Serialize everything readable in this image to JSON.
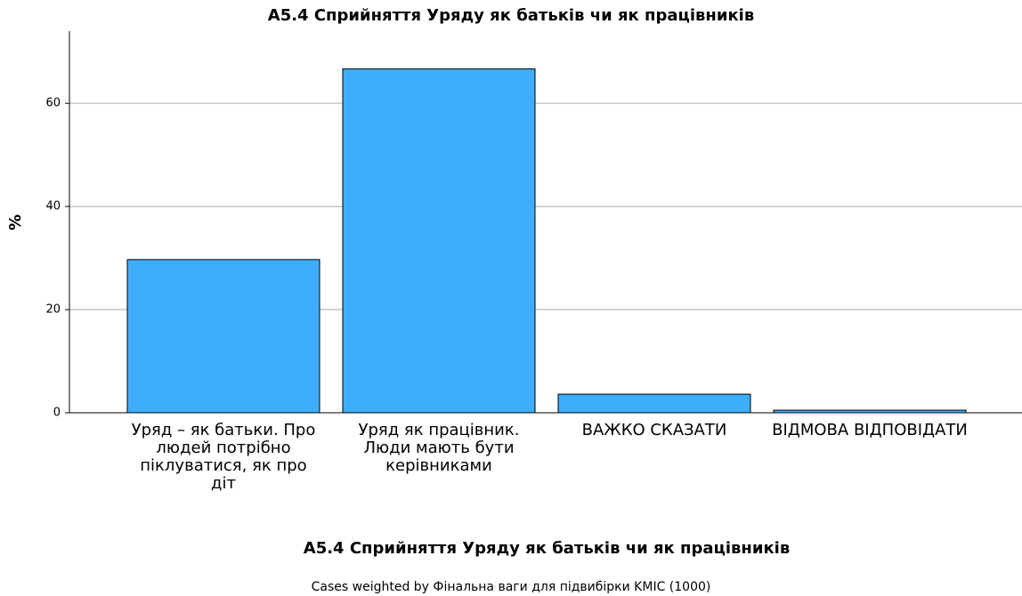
{
  "chart_data": {
    "type": "bar",
    "title": "А5.4 Сприйняття Уряду як батьків чи як працівників",
    "x_label": "А5.4 Сприйняття Уряду як батьків чи як працівників",
    "y_label": "%",
    "footnote": "Cases weighted by Фінальна ваги для підвибірки KMIC (1000)",
    "categories": [
      "Уряд – як батьки. Про людей потрібно піклуватися, як про діт",
      "Уряд як працівник. Люди мають бути керівниками",
      "ВАЖКО СКАЗАТИ",
      "ВІДМОВА ВІДПОВІДАТИ"
    ],
    "values": [
      29.7,
      66.7,
      3.6,
      0.5
    ],
    "color": "#3eaefc",
    "ylim": [
      0,
      74
    ],
    "yticks": [
      0,
      20,
      40,
      60
    ],
    "grid": true
  }
}
